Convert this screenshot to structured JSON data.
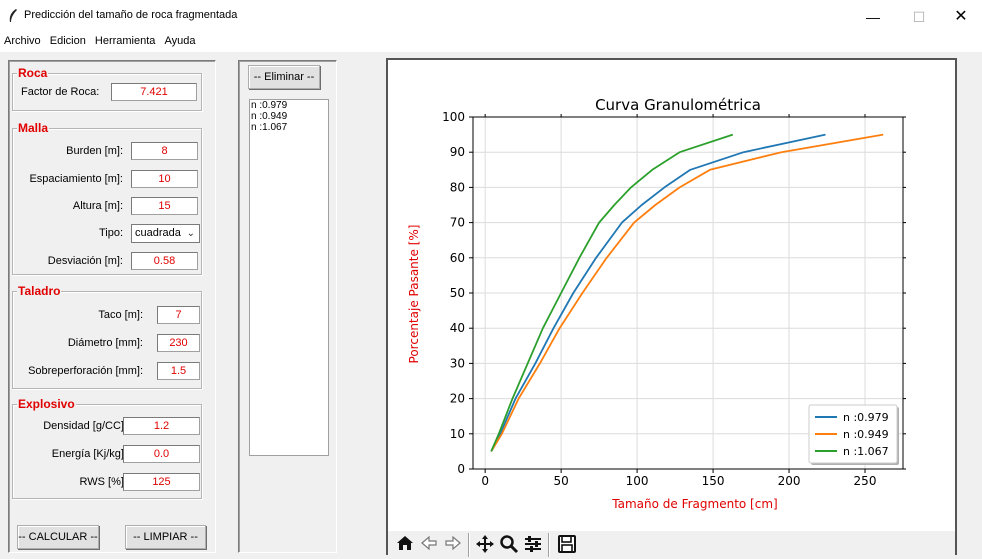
{
  "window": {
    "title": "Predicción del tamaño de roca fragmentada",
    "controls": {
      "minimize": "—",
      "maximize": "☐",
      "close": "✕"
    }
  },
  "menu": [
    "Archivo",
    "Edicion",
    "Herramienta",
    "Ayuda"
  ],
  "roca": {
    "legend": "Roca",
    "factor_label": "Factor de Roca:",
    "factor_value": "7.421"
  },
  "malla": {
    "legend": "Malla",
    "burden_label": "Burden [m]:",
    "burden_value": "8",
    "espaciamiento_label": "Espaciamiento [m]:",
    "espaciamiento_value": "10",
    "altura_label": "Altura [m]:",
    "altura_value": "15",
    "tipo_label": "Tipo:",
    "tipo_value": "cuadrada",
    "desviacion_label": "Desviación [m]:",
    "desviacion_value": "0.58"
  },
  "taladro": {
    "legend": "Taladro",
    "taco_label": "Taco [m]:",
    "taco_value": "7",
    "diametro_label": "Diámetro [mm]:",
    "diametro_value": "230",
    "sobre_label": "Sobreperforación [mm]:",
    "sobre_value": "1.5"
  },
  "explosivo": {
    "legend": "Explosivo",
    "densidad_label": "Densidad [g/CC]:",
    "densidad_value": "1.2",
    "energia_label": "Energía [Kj/kg]:",
    "energia_value": "0.0",
    "rws_label": "RWS [%]:",
    "rws_value": "125"
  },
  "buttons": {
    "calcular": "-- CALCULAR --",
    "limpiar": "-- LIMPIAR --",
    "eliminar": "-- Eliminar --"
  },
  "list_items": [
    "n :0.979",
    "n :0.949",
    "n :1.067"
  ],
  "chart_data": {
    "type": "line",
    "title": "Curva Granulométrica",
    "xlabel": "Tamaño de Fragmento [cm]",
    "ylabel": "Porcentaje Pasante [%]",
    "xlim": [
      -8,
      275
    ],
    "ylim": [
      0,
      100
    ],
    "xticks": [
      0,
      50,
      100,
      150,
      200,
      250
    ],
    "yticks": [
      0,
      10,
      20,
      30,
      40,
      50,
      60,
      70,
      80,
      90,
      100
    ],
    "grid": true,
    "legend_position": "lower-right",
    "label_color": "#e00000",
    "series": [
      {
        "name": "n :0.979",
        "color": "#1f77b4",
        "points": [
          [
            4,
            5
          ],
          [
            10,
            10
          ],
          [
            20,
            20
          ],
          [
            33,
            30
          ],
          [
            45,
            40
          ],
          [
            58,
            50
          ],
          [
            73,
            60
          ],
          [
            90,
            70
          ],
          [
            103,
            75
          ],
          [
            118,
            80
          ],
          [
            135,
            85
          ],
          [
            170,
            90
          ],
          [
            224,
            95
          ]
        ]
      },
      {
        "name": "n :0.949",
        "color": "#ff7f0e",
        "points": [
          [
            4,
            5
          ],
          [
            11,
            10
          ],
          [
            22,
            20
          ],
          [
            36,
            30
          ],
          [
            49,
            40
          ],
          [
            64,
            50
          ],
          [
            80,
            60
          ],
          [
            98,
            70
          ],
          [
            112,
            75
          ],
          [
            128,
            80
          ],
          [
            148,
            85
          ],
          [
            195,
            90
          ],
          [
            262,
            95
          ]
        ]
      },
      {
        "name": "n :1.067",
        "color": "#2ca02c",
        "points": [
          [
            4,
            5
          ],
          [
            9,
            10
          ],
          [
            18,
            20
          ],
          [
            28,
            30
          ],
          [
            38,
            40
          ],
          [
            50,
            50
          ],
          [
            62,
            60
          ],
          [
            75,
            70
          ],
          [
            85,
            75
          ],
          [
            96,
            80
          ],
          [
            110,
            85
          ],
          [
            128,
            90
          ],
          [
            163,
            95
          ]
        ]
      }
    ]
  },
  "toolbar": {
    "home": "home-icon",
    "back": "back-arrow-icon",
    "forward": "forward-arrow-icon",
    "pan": "pan-icon",
    "zoom": "zoom-icon",
    "configure": "configure-icon",
    "save": "save-icon"
  }
}
